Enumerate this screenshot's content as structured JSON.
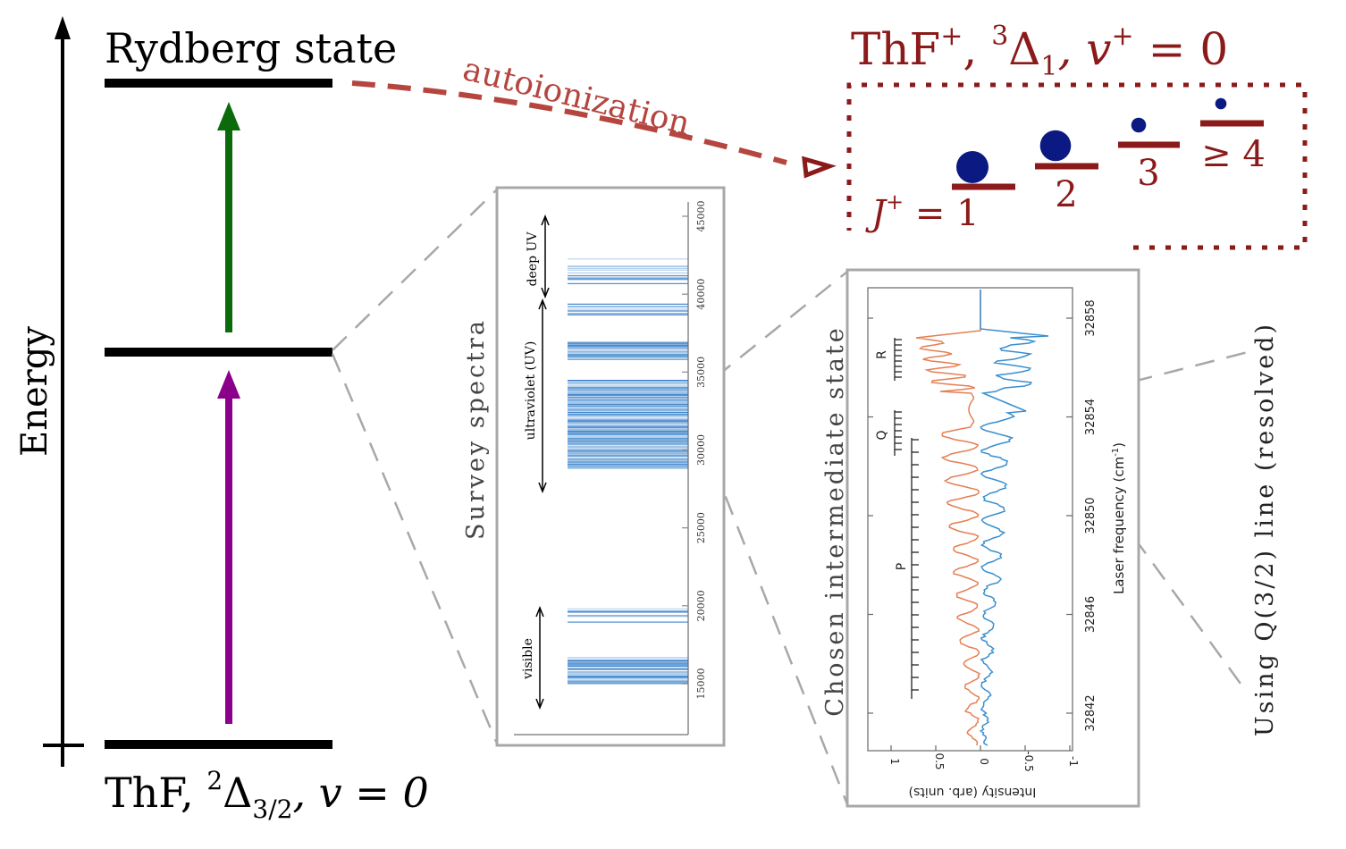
{
  "axis": {
    "label": "Energy"
  },
  "levels": {
    "rydberg": "Rydberg state",
    "ground": {
      "prefix": "ThF, ",
      "sup": "2",
      "sym": "Δ",
      "sub": "3/2",
      "tail": ", v = 0"
    }
  },
  "ion": {
    "label": {
      "prefix": "ThF",
      "sup1": "+",
      "mid": ", ",
      "sup2": "3",
      "sym": "Δ",
      "sub": "1",
      "tail1": ", v",
      "sup3": "+",
      "tail2": " = 0"
    },
    "j_prefix": "J",
    "j_sup": "+",
    "j_eq": " = ",
    "j_values": [
      "1",
      "2",
      "3",
      "≥ 4"
    ],
    "populations": [
      1.0,
      0.95,
      0.35,
      0.22
    ]
  },
  "arrows": {
    "autoionization": "autoionization"
  },
  "survey": {
    "title": "Survey spectra",
    "ticks": [
      "15000",
      "20000",
      "25000",
      "30000",
      "35000",
      "40000",
      "45000"
    ],
    "regions": [
      "visible",
      "ultraviolet (UV)",
      "deep UV"
    ]
  },
  "chosen": {
    "title": "Chosen intermediate state",
    "y_ticks": [
      "32842",
      "32846",
      "32850",
      "32854",
      "32858"
    ],
    "y_label": "Laser frequency (cm",
    "y_label_sup": "-1",
    "y_label_end": ")",
    "x_ticks": [
      "1",
      "0.5",
      "0",
      "-0.5",
      "-1"
    ],
    "x_label": "Intensity (arb. units)",
    "branches": [
      "R",
      "Q",
      "P"
    ]
  },
  "q_line": {
    "label": "Using Q(3/2) line (resolved)"
  },
  "colors": {
    "ion": "#8b1a1a",
    "arrow_dashed": "#b5453f",
    "violet": "#8b008b",
    "green": "#0b6b0b",
    "population": "#0a1a82",
    "spectrum_blue": "#2a78c6",
    "trace_orange": "#e57f54",
    "trace_blue": "#3a8fcf",
    "frame_gray": "#a8a8a8"
  }
}
